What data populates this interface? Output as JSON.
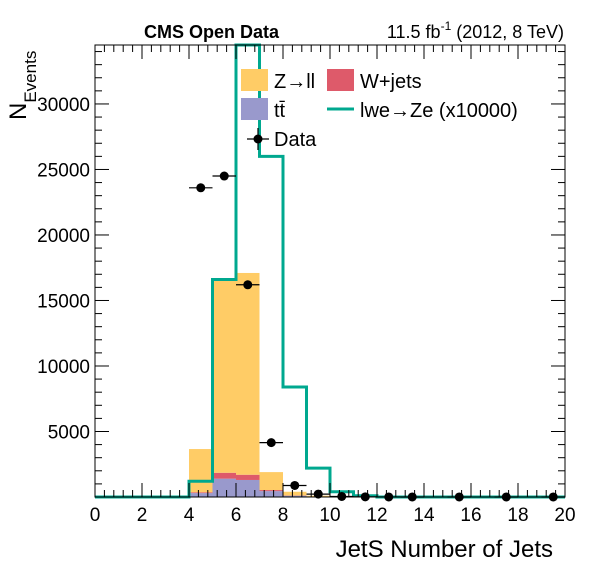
{
  "header": {
    "left": "CMS Open Data",
    "lumi_value": "11.5 fb",
    "lumi_exp": "-1",
    "lumi_rest": " (2012, 8 TeV)"
  },
  "chart_data": {
    "type": "bar",
    "stacked": true,
    "xlabel": "JetS Number of Jets",
    "ylabel_main": "N",
    "ylabel_sub": "Events",
    "xlim": [
      0,
      20
    ],
    "ylim": [
      0,
      34500
    ],
    "x_ticks": [
      0,
      2,
      4,
      6,
      8,
      10,
      12,
      14,
      16,
      18,
      20
    ],
    "y_ticks": [
      5000,
      10000,
      15000,
      20000,
      25000,
      30000
    ],
    "bins": [
      [
        0,
        1
      ],
      [
        1,
        2
      ],
      [
        2,
        3
      ],
      [
        3,
        4
      ],
      [
        4,
        5
      ],
      [
        5,
        6
      ],
      [
        6,
        7
      ],
      [
        7,
        8
      ],
      [
        8,
        9
      ],
      [
        9,
        10
      ],
      [
        10,
        11
      ],
      [
        11,
        12
      ],
      [
        12,
        13
      ],
      [
        13,
        14
      ],
      [
        14,
        15
      ],
      [
        15,
        16
      ],
      [
        16,
        17
      ],
      [
        17,
        18
      ],
      [
        18,
        19
      ],
      [
        19,
        20
      ]
    ],
    "series": [
      {
        "name": "tt̄",
        "color": "#9999cc",
        "values": [
          0,
          0,
          0,
          0,
          300,
          1400,
          1300,
          450,
          100,
          20,
          0,
          0,
          0,
          0,
          0,
          0,
          0,
          0,
          0,
          0
        ]
      },
      {
        "name": "W+jets",
        "color": "#de5a6a",
        "values": [
          0,
          0,
          0,
          0,
          60,
          450,
          400,
          80,
          15,
          5,
          0,
          0,
          0,
          0,
          0,
          0,
          0,
          0,
          0,
          0
        ]
      },
      {
        "name": "Z→ll",
        "color": "#ffcc66",
        "values": [
          0,
          0,
          0,
          0,
          3300,
          14850,
          15400,
          1370,
          285,
          75,
          20,
          0,
          0,
          0,
          0,
          0,
          0,
          0,
          0,
          0
        ]
      }
    ],
    "signal": {
      "name": "lwe→Ze (x10000)",
      "color": "#00a88f",
      "values": [
        0,
        0,
        0,
        0,
        1200,
        16600,
        36000,
        26000,
        8400,
        2200,
        400,
        100,
        0,
        0,
        0,
        0,
        0,
        0,
        0,
        0
      ]
    },
    "data_points": {
      "name": "Data",
      "color": "#000000",
      "points": [
        {
          "x": 4.5,
          "y": 23600,
          "xerr": 0.5
        },
        {
          "x": 5.5,
          "y": 24500,
          "xerr": 0.5
        },
        {
          "x": 6.5,
          "y": 16200,
          "xerr": 0.5
        },
        {
          "x": 7.5,
          "y": 4150,
          "xerr": 0.5
        },
        {
          "x": 8.5,
          "y": 880,
          "xerr": 0.5
        },
        {
          "x": 9.5,
          "y": 220,
          "xerr": 0.5
        },
        {
          "x": 10.5,
          "y": 40,
          "xerr": 0.5
        },
        {
          "x": 11.5,
          "y": 10,
          "xerr": 0.5
        },
        {
          "x": 12.5,
          "y": 3,
          "xerr": 0.5
        },
        {
          "x": 13.5,
          "y": 1,
          "xerr": 0.5
        },
        {
          "x": 15.5,
          "y": 1,
          "xerr": 0.5
        },
        {
          "x": 17.5,
          "y": 1,
          "xerr": 0.5
        },
        {
          "x": 19.5,
          "y": 1,
          "xerr": 0.5
        }
      ]
    },
    "legend": {
      "placement": "top-center",
      "entries": [
        {
          "label": "Z→ll",
          "kind": "box",
          "color": "#ffcc66"
        },
        {
          "label": "W+jets",
          "kind": "box",
          "color": "#de5a6a"
        },
        {
          "label": "tt̄",
          "kind": "box",
          "color": "#9999cc"
        },
        {
          "label": "lwe→Ze (x10000)",
          "kind": "line",
          "color": "#00a88f"
        },
        {
          "label": "Data",
          "kind": "marker",
          "color": "#000000"
        }
      ]
    }
  }
}
